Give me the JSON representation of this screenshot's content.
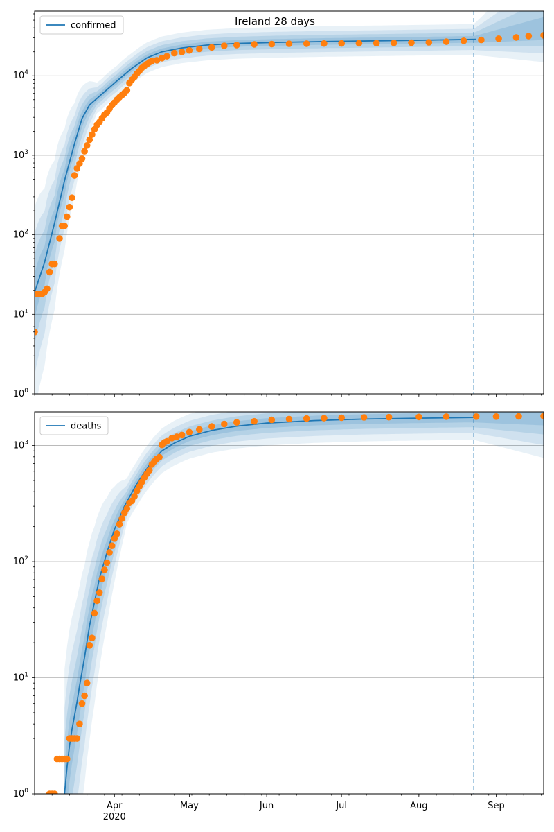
{
  "figure": {
    "title": "Ireland 28 days"
  },
  "chart_data": [
    {
      "type": "line",
      "yscale": "log",
      "ylim": [
        1,
        65000
      ],
      "xlim": [
        "2020-02-29",
        "2020-09-20"
      ],
      "grid": "y-major",
      "legend_position": "top-left",
      "series": [
        {
          "name": "confirmed",
          "kind": "line",
          "color": "#1f77b4",
          "points": [
            [
              "2020-02-29",
              19
            ],
            [
              "2020-03-04",
              45
            ],
            [
              "2020-03-08",
              140
            ],
            [
              "2020-03-12",
              480
            ],
            [
              "2020-03-16",
              1400
            ],
            [
              "2020-03-19",
              2900
            ],
            [
              "2020-03-22",
              4300
            ],
            [
              "2020-03-27",
              5900
            ],
            [
              "2020-04-02",
              8600
            ],
            [
              "2020-04-08",
              12400
            ],
            [
              "2020-04-14",
              16800
            ],
            [
              "2020-04-20",
              20000
            ],
            [
              "2020-04-28",
              22400
            ],
            [
              "2020-05-08",
              24300
            ],
            [
              "2020-05-20",
              25500
            ],
            [
              "2020-06-05",
              26300
            ],
            [
              "2020-06-25",
              27000
            ],
            [
              "2020-07-15",
              27500
            ],
            [
              "2020-08-05",
              28100
            ],
            [
              "2020-08-24",
              28700
            ]
          ]
        },
        {
          "name": "",
          "kind": "scatter",
          "color": "#ff7f0e",
          "points": [
            [
              "2020-02-29",
              6
            ],
            [
              "2020-03-01",
              18
            ],
            [
              "2020-03-02",
              18
            ],
            [
              "2020-03-03",
              18
            ],
            [
              "2020-03-04",
              19
            ],
            [
              "2020-03-05",
              21
            ],
            [
              "2020-03-06",
              34
            ],
            [
              "2020-03-07",
              43
            ],
            [
              "2020-03-08",
              43
            ],
            [
              "2020-03-10",
              90
            ],
            [
              "2020-03-11",
              129
            ],
            [
              "2020-03-12",
              129
            ],
            [
              "2020-03-13",
              169
            ],
            [
              "2020-03-14",
              223
            ],
            [
              "2020-03-15",
              292
            ],
            [
              "2020-03-16",
              557
            ],
            [
              "2020-03-17",
              683
            ],
            [
              "2020-03-18",
              785
            ],
            [
              "2020-03-19",
              906
            ],
            [
              "2020-03-20",
              1125
            ],
            [
              "2020-03-21",
              1329
            ],
            [
              "2020-03-22",
              1564
            ],
            [
              "2020-03-23",
              1819
            ],
            [
              "2020-03-24",
              2121
            ],
            [
              "2020-03-25",
              2415
            ],
            [
              "2020-03-26",
              2615
            ],
            [
              "2020-03-27",
              2910
            ],
            [
              "2020-03-28",
              3235
            ],
            [
              "2020-03-29",
              3447
            ],
            [
              "2020-03-30",
              3849
            ],
            [
              "2020-03-31",
              4273
            ],
            [
              "2020-04-01",
              4604
            ],
            [
              "2020-04-02",
              4994
            ],
            [
              "2020-04-03",
              5364
            ],
            [
              "2020-04-04",
              5709
            ],
            [
              "2020-04-05",
              6074
            ],
            [
              "2020-04-06",
              6574
            ],
            [
              "2020-04-07",
              8089
            ],
            [
              "2020-04-08",
              8928
            ],
            [
              "2020-04-09",
              9655
            ],
            [
              "2020-04-10",
              10647
            ],
            [
              "2020-04-11",
              11479
            ],
            [
              "2020-04-12",
              12547
            ],
            [
              "2020-04-13",
              13271
            ],
            [
              "2020-04-14",
              13980
            ],
            [
              "2020-04-15",
              14758
            ],
            [
              "2020-04-16",
              15251
            ],
            [
              "2020-04-18",
              15652
            ],
            [
              "2020-04-20",
              16671
            ],
            [
              "2020-04-22",
              17607
            ],
            [
              "2020-04-25",
              19262
            ],
            [
              "2020-04-28",
              19877
            ],
            [
              "2020-05-01",
              20833
            ],
            [
              "2020-05-05",
              21772
            ],
            [
              "2020-05-10",
              22760
            ],
            [
              "2020-05-15",
              23827
            ],
            [
              "2020-05-20",
              24315
            ],
            [
              "2020-05-27",
              24841
            ],
            [
              "2020-06-03",
              25062
            ],
            [
              "2020-06-10",
              25238
            ],
            [
              "2020-06-17",
              25341
            ],
            [
              "2020-06-24",
              25439
            ],
            [
              "2020-07-01",
              25489
            ],
            [
              "2020-07-08",
              25589
            ],
            [
              "2020-07-15",
              25730
            ],
            [
              "2020-07-22",
              25881
            ],
            [
              "2020-07-29",
              26027
            ],
            [
              "2020-08-05",
              26303
            ],
            [
              "2020-08-12",
              26838
            ],
            [
              "2020-08-19",
              27499
            ],
            [
              "2020-08-26",
              28201
            ],
            [
              "2020-09-02",
              29206
            ],
            [
              "2020-09-09",
              30360
            ],
            [
              "2020-09-14",
              31549
            ],
            [
              "2020-09-20",
              32271
            ]
          ]
        }
      ],
      "bands_color": "#1f77b4",
      "vline_date": "2020-08-23",
      "x_ticks": [
        "Apr\n2020",
        "May",
        "Jun",
        "Jul",
        "Aug",
        "Sep"
      ],
      "y_ticks": [
        "10^0",
        "10^1",
        "10^2",
        "10^3",
        "10^4"
      ]
    },
    {
      "type": "line",
      "yscale": "log",
      "ylim": [
        1,
        1950
      ],
      "xlim": [
        "2020-02-29",
        "2020-09-20"
      ],
      "grid": "y-major",
      "legend_position": "top-left",
      "series": [
        {
          "name": "deaths",
          "kind": "line",
          "color": "#1f77b4",
          "points": [
            [
              "2020-03-12",
              1.0
            ],
            [
              "2020-03-13",
              1.7
            ],
            [
              "2020-03-14",
              2.6
            ],
            [
              "2020-03-15",
              3.6
            ],
            [
              "2020-03-16",
              4.7
            ],
            [
              "2020-03-17",
              6.2
            ],
            [
              "2020-03-18",
              8.5
            ],
            [
              "2020-03-20",
              15
            ],
            [
              "2020-03-22",
              28
            ],
            [
              "2020-03-24",
              45
            ],
            [
              "2020-03-26",
              72
            ],
            [
              "2020-03-29",
              120
            ],
            [
              "2020-04-01",
              190
            ],
            [
              "2020-04-05",
              300
            ],
            [
              "2020-04-10",
              470
            ],
            [
              "2020-04-15",
              680
            ],
            [
              "2020-04-20",
              900
            ],
            [
              "2020-04-25",
              1050
            ],
            [
              "2020-05-01",
              1200
            ],
            [
              "2020-05-10",
              1350
            ],
            [
              "2020-05-20",
              1470
            ],
            [
              "2020-06-01",
              1560
            ],
            [
              "2020-06-20",
              1640
            ],
            [
              "2020-07-10",
              1690
            ],
            [
              "2020-08-01",
              1720
            ],
            [
              "2020-08-24",
              1745
            ]
          ]
        },
        {
          "name": "",
          "kind": "scatter",
          "color": "#ff7f0e",
          "points": [
            [
              "2020-03-06",
              1
            ],
            [
              "2020-03-07",
              1
            ],
            [
              "2020-03-08",
              1
            ],
            [
              "2020-03-09",
              2
            ],
            [
              "2020-03-10",
              2
            ],
            [
              "2020-03-11",
              2
            ],
            [
              "2020-03-12",
              2
            ],
            [
              "2020-03-13",
              2
            ],
            [
              "2020-03-14",
              3
            ],
            [
              "2020-03-15",
              3
            ],
            [
              "2020-03-16",
              3
            ],
            [
              "2020-03-17",
              3
            ],
            [
              "2020-03-18",
              4
            ],
            [
              "2020-03-19",
              6
            ],
            [
              "2020-03-20",
              7
            ],
            [
              "2020-03-21",
              9
            ],
            [
              "2020-03-22",
              19
            ],
            [
              "2020-03-23",
              22
            ],
            [
              "2020-03-24",
              36
            ],
            [
              "2020-03-25",
              46
            ],
            [
              "2020-03-26",
              54
            ],
            [
              "2020-03-27",
              71
            ],
            [
              "2020-03-28",
              85
            ],
            [
              "2020-03-29",
              98
            ],
            [
              "2020-03-30",
              120
            ],
            [
              "2020-03-31",
              137
            ],
            [
              "2020-04-01",
              158
            ],
            [
              "2020-04-02",
              174
            ],
            [
              "2020-04-03",
              210
            ],
            [
              "2020-04-04",
              235
            ],
            [
              "2020-04-05",
              263
            ],
            [
              "2020-04-06",
              287
            ],
            [
              "2020-04-07",
              320
            ],
            [
              "2020-04-08",
              334
            ],
            [
              "2020-04-09",
              365
            ],
            [
              "2020-04-10",
              406
            ],
            [
              "2020-04-11",
              444
            ],
            [
              "2020-04-12",
              486
            ],
            [
              "2020-04-13",
              530
            ],
            [
              "2020-04-14",
              571
            ],
            [
              "2020-04-15",
              610
            ],
            [
              "2020-04-16",
              687
            ],
            [
              "2020-04-17",
              730
            ],
            [
              "2020-04-18",
              769
            ],
            [
              "2020-04-19",
              794
            ],
            [
              "2020-04-20",
              1014
            ],
            [
              "2020-04-21",
              1063
            ],
            [
              "2020-04-22",
              1087
            ],
            [
              "2020-04-24",
              1159
            ],
            [
              "2020-04-26",
              1190
            ],
            [
              "2020-04-28",
              1232
            ],
            [
              "2020-05-01",
              1303
            ],
            [
              "2020-05-05",
              1375
            ],
            [
              "2020-05-10",
              1458
            ],
            [
              "2020-05-15",
              1533
            ],
            [
              "2020-05-20",
              1583
            ],
            [
              "2020-05-27",
              1615
            ],
            [
              "2020-06-03",
              1664
            ],
            [
              "2020-06-10",
              1691
            ],
            [
              "2020-06-17",
              1709
            ],
            [
              "2020-06-24",
              1720
            ],
            [
              "2020-07-01",
              1736
            ],
            [
              "2020-07-10",
              1746
            ],
            [
              "2020-07-20",
              1753
            ],
            [
              "2020-08-01",
              1763
            ],
            [
              "2020-08-12",
              1774
            ],
            [
              "2020-08-24",
              1777
            ],
            [
              "2020-09-01",
              1777
            ],
            [
              "2020-09-10",
              1781
            ],
            [
              "2020-09-20",
              1792
            ]
          ]
        }
      ],
      "bands_color": "#1f77b4",
      "vline_date": "2020-08-23",
      "x_ticks": [
        "Apr\n2020",
        "May",
        "Jun",
        "Jul",
        "Aug",
        "Sep"
      ],
      "y_ticks": [
        "10^0",
        "10^1",
        "10^2",
        "10^3"
      ]
    }
  ]
}
